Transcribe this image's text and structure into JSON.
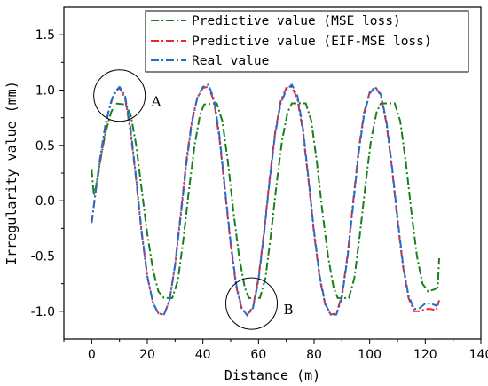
{
  "chart_data": {
    "type": "line",
    "xlabel": "Distance (m)",
    "ylabel": "Irregularity value (mm)",
    "xlim": [
      -10,
      140
    ],
    "ylim": [
      -1.25,
      1.75
    ],
    "x_ticks": [
      0,
      20,
      40,
      60,
      80,
      100,
      120,
      140
    ],
    "y_ticks": [
      -1.0,
      -0.5,
      0.0,
      0.5,
      1.0,
      1.5
    ],
    "x_tick_labels": [
      "0",
      "20",
      "40",
      "60",
      "80",
      "100",
      "120",
      "140"
    ],
    "y_tick_labels": [
      "-1.0",
      "-0.5",
      "0.0",
      "0.5",
      "1.0",
      "1.5"
    ],
    "legend_position": "top-right",
    "series": [
      {
        "name": "Predictive value (MSE loss)",
        "color": "#1a7f1a",
        "style": "dash-dot",
        "points": [
          [
            0,
            0.28
          ],
          [
            0.8,
            0.05
          ],
          [
            1.5,
            0.12
          ],
          [
            3,
            0.35
          ],
          [
            5,
            0.62
          ],
          [
            7,
            0.8
          ],
          [
            8.5,
            0.88
          ],
          [
            12,
            0.87
          ],
          [
            14,
            0.78
          ],
          [
            16,
            0.5
          ],
          [
            18,
            0.1
          ],
          [
            20,
            -0.3
          ],
          [
            22,
            -0.62
          ],
          [
            24,
            -0.82
          ],
          [
            26,
            -0.88
          ],
          [
            29,
            -0.88
          ],
          [
            31,
            -0.72
          ],
          [
            33,
            -0.35
          ],
          [
            35,
            0.1
          ],
          [
            37,
            0.5
          ],
          [
            39,
            0.78
          ],
          [
            40.5,
            0.87
          ],
          [
            45,
            0.88
          ],
          [
            47,
            0.72
          ],
          [
            49,
            0.35
          ],
          [
            51,
            -0.1
          ],
          [
            53,
            -0.5
          ],
          [
            55,
            -0.78
          ],
          [
            56.5,
            -0.88
          ],
          [
            60.5,
            -0.88
          ],
          [
            62.5,
            -0.7
          ],
          [
            64.5,
            -0.3
          ],
          [
            66.5,
            0.15
          ],
          [
            68.5,
            0.55
          ],
          [
            70.5,
            0.8
          ],
          [
            72,
            0.88
          ],
          [
            77,
            0.88
          ],
          [
            79,
            0.72
          ],
          [
            81,
            0.35
          ],
          [
            83,
            -0.1
          ],
          [
            85,
            -0.5
          ],
          [
            87,
            -0.78
          ],
          [
            88.5,
            -0.88
          ],
          [
            92.5,
            -0.88
          ],
          [
            94.5,
            -0.7
          ],
          [
            96.5,
            -0.3
          ],
          [
            98.5,
            0.15
          ],
          [
            100.5,
            0.55
          ],
          [
            102.5,
            0.8
          ],
          [
            104,
            0.88
          ],
          [
            109,
            0.88
          ],
          [
            111,
            0.72
          ],
          [
            113,
            0.35
          ],
          [
            115,
            -0.1
          ],
          [
            117,
            -0.5
          ],
          [
            119,
            -0.75
          ],
          [
            121,
            -0.82
          ],
          [
            123.5,
            -0.8
          ],
          [
            124.5,
            -0.78
          ],
          [
            125,
            -0.52
          ]
        ]
      },
      {
        "name": "Predictive value (EIF-MSE loss)",
        "color": "#e8282b",
        "style": "dash-dot",
        "points": [
          [
            0,
            -0.2
          ],
          [
            1,
            0
          ],
          [
            2,
            0.18
          ],
          [
            4,
            0.5
          ],
          [
            6,
            0.8
          ],
          [
            8,
            0.97
          ],
          [
            10,
            1.02
          ],
          [
            12,
            0.93
          ],
          [
            14,
            0.62
          ],
          [
            16,
            0.18
          ],
          [
            18,
            -0.3
          ],
          [
            20,
            -0.68
          ],
          [
            22,
            -0.92
          ],
          [
            24,
            -1.02
          ],
          [
            26,
            -1.03
          ],
          [
            28,
            -0.9
          ],
          [
            30,
            -0.58
          ],
          [
            32,
            -0.12
          ],
          [
            34,
            0.35
          ],
          [
            36,
            0.72
          ],
          [
            38,
            0.93
          ],
          [
            40,
            1.02
          ],
          [
            42,
            1.03
          ],
          [
            44,
            0.9
          ],
          [
            46,
            0.55
          ],
          [
            48,
            0.08
          ],
          [
            50,
            -0.4
          ],
          [
            52,
            -0.78
          ],
          [
            54,
            -0.98
          ],
          [
            56,
            -1.03
          ],
          [
            58,
            -0.96
          ],
          [
            60,
            -0.7
          ],
          [
            62,
            -0.28
          ],
          [
            64,
            0.2
          ],
          [
            66,
            0.62
          ],
          [
            68,
            0.9
          ],
          [
            70,
            1.02
          ],
          [
            72,
            1.03
          ],
          [
            74,
            0.92
          ],
          [
            76,
            0.62
          ],
          [
            78,
            0.18
          ],
          [
            80,
            -0.3
          ],
          [
            82,
            -0.7
          ],
          [
            84,
            -0.94
          ],
          [
            86,
            -1.03
          ],
          [
            88,
            -1.02
          ],
          [
            90,
            -0.86
          ],
          [
            92,
            -0.5
          ],
          [
            94,
            -0.02
          ],
          [
            96,
            0.45
          ],
          [
            98,
            0.8
          ],
          [
            100,
            0.98
          ],
          [
            102,
            1.03
          ],
          [
            104,
            0.95
          ],
          [
            106,
            0.7
          ],
          [
            108,
            0.3
          ],
          [
            110,
            -0.18
          ],
          [
            112,
            -0.6
          ],
          [
            114,
            -0.88
          ],
          [
            116,
            -1.0
          ],
          [
            118,
            -1.0
          ],
          [
            120,
            -0.98
          ],
          [
            122,
            -0.98
          ],
          [
            124,
            -0.99
          ],
          [
            125,
            -0.9
          ]
        ]
      },
      {
        "name": "Real value",
        "color": "#1f6fd1",
        "style": "dash-dot",
        "points": [
          [
            0,
            -0.2
          ],
          [
            1.5,
            0.1
          ],
          [
            3,
            0.38
          ],
          [
            5,
            0.7
          ],
          [
            7,
            0.9
          ],
          [
            9,
            1.0
          ],
          [
            10,
            1.03
          ],
          [
            12,
            0.95
          ],
          [
            14,
            0.65
          ],
          [
            16,
            0.2
          ],
          [
            18,
            -0.28
          ],
          [
            20,
            -0.68
          ],
          [
            22,
            -0.92
          ],
          [
            24,
            -1.02
          ],
          [
            26,
            -1.03
          ],
          [
            28,
            -0.9
          ],
          [
            30,
            -0.58
          ],
          [
            32,
            -0.15
          ],
          [
            34,
            0.32
          ],
          [
            36,
            0.7
          ],
          [
            38,
            0.93
          ],
          [
            40,
            1.03
          ],
          [
            42,
            1.05
          ],
          [
            44,
            0.92
          ],
          [
            46,
            0.58
          ],
          [
            48,
            0.1
          ],
          [
            50,
            -0.38
          ],
          [
            52,
            -0.76
          ],
          [
            54,
            -0.97
          ],
          [
            56,
            -1.04
          ],
          [
            58,
            -0.97
          ],
          [
            60,
            -0.72
          ],
          [
            62,
            -0.3
          ],
          [
            64,
            0.18
          ],
          [
            66,
            0.6
          ],
          [
            68,
            0.88
          ],
          [
            70,
            1.0
          ],
          [
            72,
            1.05
          ],
          [
            74,
            0.95
          ],
          [
            76,
            0.65
          ],
          [
            78,
            0.2
          ],
          [
            80,
            -0.28
          ],
          [
            82,
            -0.68
          ],
          [
            84,
            -0.93
          ],
          [
            86,
            -1.03
          ],
          [
            88,
            -1.03
          ],
          [
            90,
            -0.88
          ],
          [
            92,
            -0.52
          ],
          [
            94,
            -0.05
          ],
          [
            96,
            0.42
          ],
          [
            98,
            0.78
          ],
          [
            100,
            0.97
          ],
          [
            102,
            1.03
          ],
          [
            104,
            0.96
          ],
          [
            106,
            0.72
          ],
          [
            108,
            0.32
          ],
          [
            110,
            -0.15
          ],
          [
            112,
            -0.58
          ],
          [
            114,
            -0.86
          ],
          [
            116,
            -0.98
          ],
          [
            118,
            -0.97
          ],
          [
            120,
            -0.93
          ],
          [
            122,
            -0.93
          ],
          [
            124,
            -0.95
          ],
          [
            125,
            -0.9
          ]
        ]
      }
    ],
    "annotations": [
      {
        "label": "A",
        "circle_center": [
          10,
          0.95
        ]
      },
      {
        "label": "B",
        "circle_center": [
          57.5,
          -0.93
        ]
      }
    ]
  }
}
